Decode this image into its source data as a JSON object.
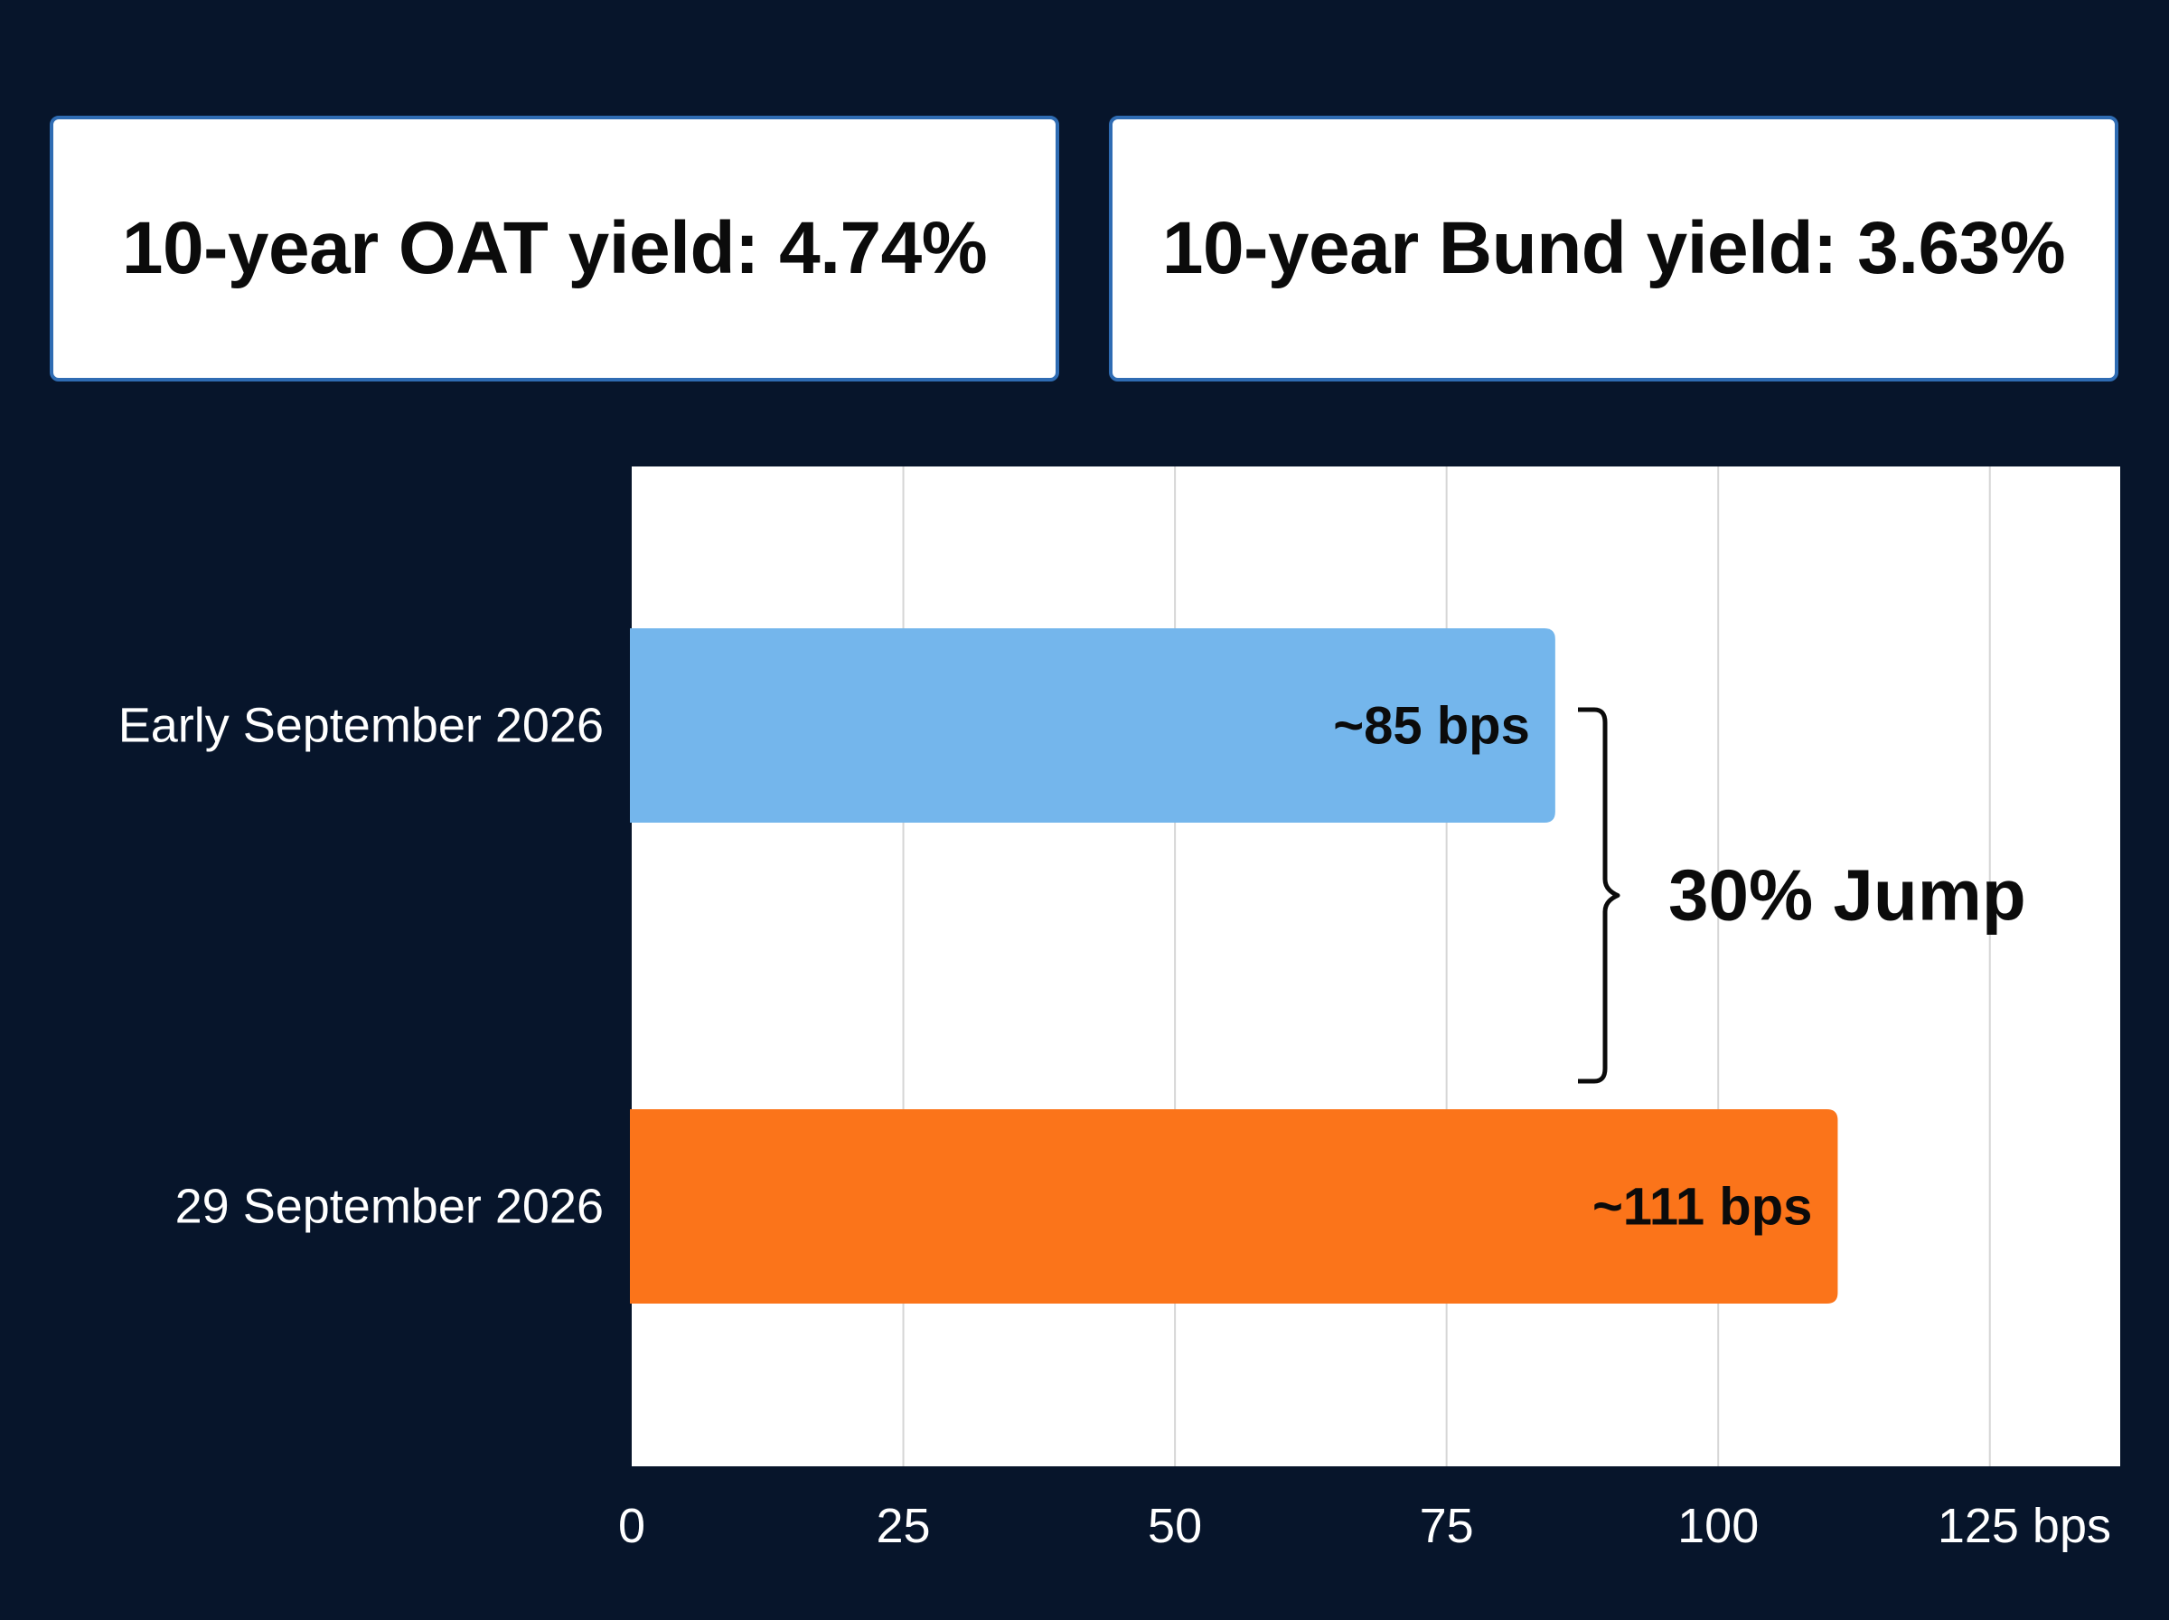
{
  "cards": {
    "oat": "10-year OAT yield: 4.74%",
    "bund": "10-year Bund yield: 3.63%"
  },
  "chart_data": {
    "type": "bar",
    "orientation": "horizontal",
    "categories": [
      "Early September 2026",
      "29 September 2026"
    ],
    "values": [
      85,
      111
    ],
    "data_labels": [
      "~85 bps",
      "~111 bps"
    ],
    "colors": [
      "#74b6ec",
      "#fb741a"
    ],
    "xlim": [
      0,
      137
    ],
    "x_ticks": [
      0,
      25,
      50,
      75,
      100,
      125
    ],
    "x_tick_labels": [
      "0",
      "25",
      "50",
      "75",
      "100",
      "125 bps"
    ],
    "grid": true,
    "annotation": "30% Jump"
  }
}
